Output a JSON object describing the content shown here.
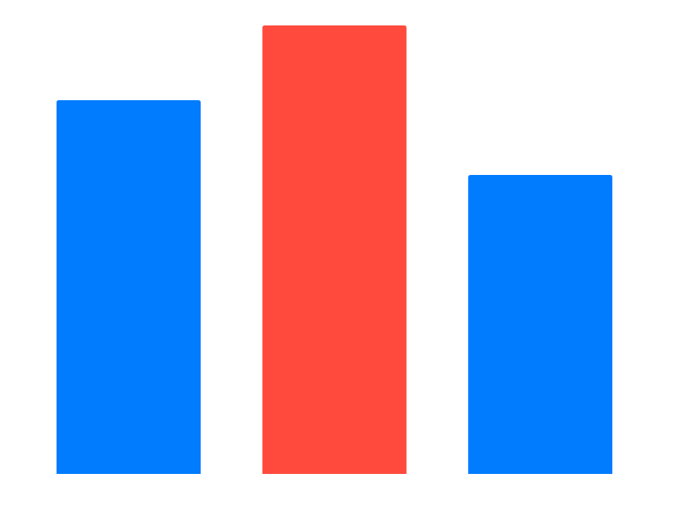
{
  "chart_data": {
    "type": "bar",
    "categories": [
      "",
      "",
      ""
    ],
    "values": [
      5,
      6,
      4
    ],
    "ylim": [
      0,
      6
    ],
    "grid": false,
    "legend": "none",
    "bar_colors": [
      "#027CFF",
      "#FF4A3D",
      "#027CFF"
    ]
  }
}
